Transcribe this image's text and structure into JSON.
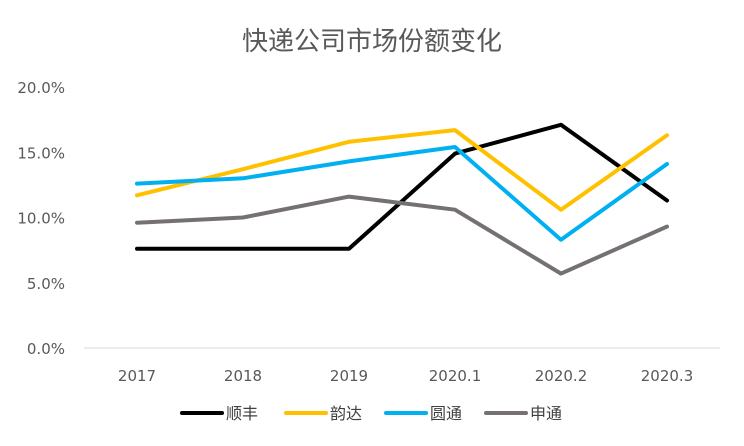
{
  "chart_data": {
    "type": "line",
    "title": "快递公司市场份额变化",
    "xlabel": "",
    "ylabel": "",
    "categories": [
      "2017",
      "2018",
      "2019",
      "2020.1",
      "2020.2",
      "2020.3"
    ],
    "ylim": [
      0,
      20
    ],
    "yticks": [
      "0.0%",
      "5.0%",
      "10.0%",
      "15.0%",
      "20.0%"
    ],
    "ytick_values": [
      0,
      5,
      10,
      15,
      20
    ],
    "grid": false,
    "legend_position": "bottom",
    "series": [
      {
        "name": "顺丰",
        "color": "#000000",
        "values": [
          7.6,
          7.6,
          7.6,
          14.9,
          17.1,
          11.3
        ]
      },
      {
        "name": "韵达",
        "color": "#FFC000",
        "values": [
          11.7,
          13.7,
          15.8,
          16.7,
          10.6,
          16.3
        ]
      },
      {
        "name": "圆通",
        "color": "#00B0F0",
        "values": [
          12.6,
          13.0,
          14.3,
          15.4,
          8.3,
          14.1
        ]
      },
      {
        "name": "申通",
        "color": "#767171",
        "values": [
          9.6,
          10.0,
          11.6,
          10.6,
          5.7,
          9.3
        ]
      }
    ]
  }
}
